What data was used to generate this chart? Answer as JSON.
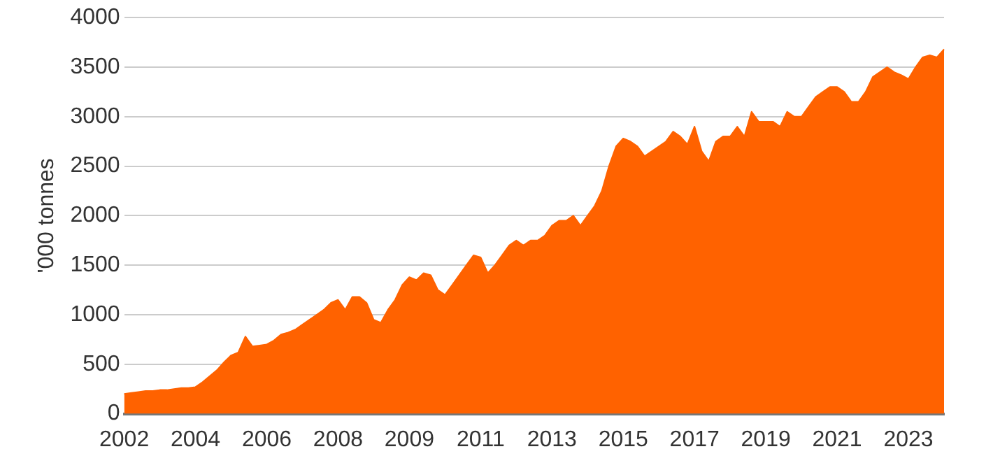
{
  "chart_data": {
    "type": "area",
    "ylabel": "'000 tonnes",
    "categories": [
      "2002",
      null,
      null,
      null,
      null,
      null,
      null,
      null,
      null,
      null,
      "2004",
      null,
      null,
      null,
      null,
      null,
      null,
      null,
      null,
      null,
      "2006",
      null,
      null,
      null,
      null,
      null,
      null,
      null,
      null,
      null,
      "2008",
      null,
      null,
      null,
      null,
      null,
      null,
      null,
      null,
      null,
      "2009",
      null,
      null,
      null,
      null,
      null,
      null,
      null,
      null,
      null,
      "2011",
      null,
      null,
      null,
      null,
      null,
      null,
      null,
      null,
      null,
      "2013",
      null,
      null,
      null,
      null,
      null,
      null,
      null,
      null,
      null,
      "2015",
      null,
      null,
      null,
      null,
      null,
      null,
      null,
      null,
      null,
      "2017",
      null,
      null,
      null,
      null,
      null,
      null,
      null,
      null,
      null,
      "2019",
      null,
      null,
      null,
      null,
      null,
      null,
      null,
      null,
      null,
      "2021",
      null,
      null,
      null,
      null,
      null,
      null,
      null,
      null,
      null,
      "2023",
      null,
      null,
      null,
      null,
      null
    ],
    "series": [
      {
        "color": "#ff6200",
        "values": [
          200,
          210,
          220,
          230,
          230,
          240,
          240,
          250,
          260,
          260,
          270,
          320,
          380,
          440,
          520,
          590,
          620,
          780,
          680,
          690,
          700,
          740,
          800,
          820,
          850,
          900,
          950,
          1000,
          1050,
          1120,
          1150,
          1050,
          1180,
          1180,
          1120,
          950,
          920,
          1050,
          1150,
          1300,
          1380,
          1350,
          1420,
          1400,
          1250,
          1200,
          1300,
          1400,
          1500,
          1600,
          1580,
          1420,
          1500,
          1600,
          1700,
          1750,
          1700,
          1750,
          1750,
          1800,
          1900,
          1950,
          1950,
          2000,
          1900,
          2000,
          2100,
          2250,
          2500,
          2700,
          2780,
          2750,
          2700,
          2600,
          2650,
          2700,
          2750,
          2850,
          2800,
          2720,
          2900,
          2650,
          2550,
          2750,
          2800,
          2800,
          2900,
          2800,
          3050,
          2950,
          2950,
          2950,
          2900,
          3050,
          3000,
          3000,
          3100,
          3200,
          3250,
          3300,
          3300,
          3250,
          3150,
          3150,
          3250,
          3400,
          3450,
          3500,
          3450,
          3420,
          3380,
          3500,
          3600,
          3620,
          3600,
          3680
        ]
      }
    ],
    "ylim": [
      0,
      4000
    ],
    "yticks": [
      0,
      500,
      1000,
      1500,
      2000,
      2500,
      3000,
      3500,
      4000
    ],
    "grid": "y",
    "legend": false
  }
}
